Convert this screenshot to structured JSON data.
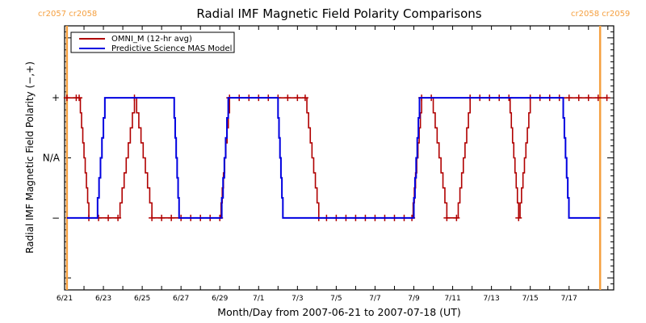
{
  "chart_data": {
    "type": "line",
    "title": "Radial IMF Magnetic Field Polarity Comparisons",
    "xlabel": "Month/Day from 2007-06-21 to 2007-07-18 (UT)",
    "ylabel": "Radial IMF Magnetic Field Polarity (−,+)",
    "x_unit": "days since 2007-06-21 00:00 UT",
    "xlim": [
      0,
      28.3
    ],
    "ylim": [
      -2.2,
      2.2
    ],
    "x_tick_labels": [
      {
        "x": 0,
        "label": "6/21"
      },
      {
        "x": 2,
        "label": "6/23"
      },
      {
        "x": 4,
        "label": "6/25"
      },
      {
        "x": 6,
        "label": "6/27"
      },
      {
        "x": 8,
        "label": "6/29"
      },
      {
        "x": 10,
        "label": "7/1"
      },
      {
        "x": 12,
        "label": "7/3"
      },
      {
        "x": 14,
        "label": "7/5"
      },
      {
        "x": 16,
        "label": "7/7"
      },
      {
        "x": 18,
        "label": "7/9"
      },
      {
        "x": 20,
        "label": "7/11"
      },
      {
        "x": 22,
        "label": "7/13"
      },
      {
        "x": 24,
        "label": "7/15"
      },
      {
        "x": 26,
        "label": "7/17"
      }
    ],
    "x_minor_step": 1,
    "y_tick_labels": [
      {
        "y": 1,
        "label": "+"
      },
      {
        "y": 0,
        "label": "N/A"
      },
      {
        "y": -1,
        "label": "−"
      }
    ],
    "y_minor_step": 0.1,
    "legend": {
      "position": "top-left",
      "entries": [
        {
          "name": "OMNI_M (12-hr avg)",
          "color": "#b00000"
        },
        {
          "name": "Predictive Science MAS Model",
          "color": "#0000e0"
        }
      ]
    },
    "carrington_markers": [
      {
        "x": 0.12,
        "label": "cr2057 cr2058",
        "side": "left"
      },
      {
        "x": 27.6,
        "label": "cr2058 cr2059",
        "side": "right"
      }
    ],
    "marker_color": "#f5a040",
    "series": [
      {
        "name": "OMNI_M (12-hr avg)",
        "color": "#b00000",
        "markers": "plus",
        "points": [
          [
            0.12,
            1
          ],
          [
            0.6,
            1
          ],
          [
            0.75,
            1
          ],
          [
            1.25,
            -1
          ],
          [
            1.75,
            -1
          ],
          [
            2.25,
            -1
          ],
          [
            2.75,
            -1
          ],
          [
            3.6,
            1
          ],
          [
            4.5,
            -1
          ],
          [
            5.0,
            -1
          ],
          [
            5.5,
            -1
          ],
          [
            6.0,
            -1
          ],
          [
            6.5,
            -1
          ],
          [
            7.0,
            -1
          ],
          [
            7.5,
            -1
          ],
          [
            8.0,
            -1
          ],
          [
            8.5,
            1
          ],
          [
            9.0,
            1
          ],
          [
            9.5,
            1
          ],
          [
            10.0,
            1
          ],
          [
            10.5,
            1
          ],
          [
            11.0,
            1
          ],
          [
            11.5,
            1
          ],
          [
            12.0,
            1
          ],
          [
            12.4,
            1
          ],
          [
            13.1,
            -1
          ],
          [
            13.5,
            -1
          ],
          [
            14.0,
            -1
          ],
          [
            14.5,
            -1
          ],
          [
            15.0,
            -1
          ],
          [
            15.5,
            -1
          ],
          [
            16.0,
            -1
          ],
          [
            16.5,
            -1
          ],
          [
            17.0,
            -1
          ],
          [
            17.5,
            -1
          ],
          [
            17.9,
            -1
          ],
          [
            18.4,
            1
          ],
          [
            18.9,
            1
          ],
          [
            19.7,
            -1
          ],
          [
            20.2,
            -1
          ],
          [
            20.9,
            1
          ],
          [
            21.4,
            1
          ],
          [
            21.9,
            1
          ],
          [
            22.4,
            1
          ],
          [
            22.9,
            1
          ],
          [
            23.4,
            -1
          ],
          [
            24.0,
            1
          ],
          [
            24.5,
            1
          ],
          [
            25.0,
            1
          ],
          [
            25.5,
            1
          ],
          [
            26.0,
            1
          ],
          [
            26.5,
            1
          ],
          [
            27.0,
            1
          ],
          [
            27.5,
            1
          ],
          [
            27.95,
            1
          ]
        ]
      },
      {
        "name": "Predictive Science MAS Model",
        "color": "#0000e0",
        "points": [
          [
            0.12,
            -1
          ],
          [
            1.7,
            -1
          ],
          [
            2.15,
            1
          ],
          [
            5.65,
            1
          ],
          [
            5.95,
            -1
          ],
          [
            8.1,
            -1
          ],
          [
            8.5,
            1
          ],
          [
            11.0,
            1
          ],
          [
            11.3,
            -1
          ],
          [
            18.0,
            -1
          ],
          [
            18.35,
            1
          ],
          [
            25.7,
            1
          ],
          [
            26.05,
            -1
          ],
          [
            27.6,
            -1
          ]
        ]
      }
    ]
  }
}
